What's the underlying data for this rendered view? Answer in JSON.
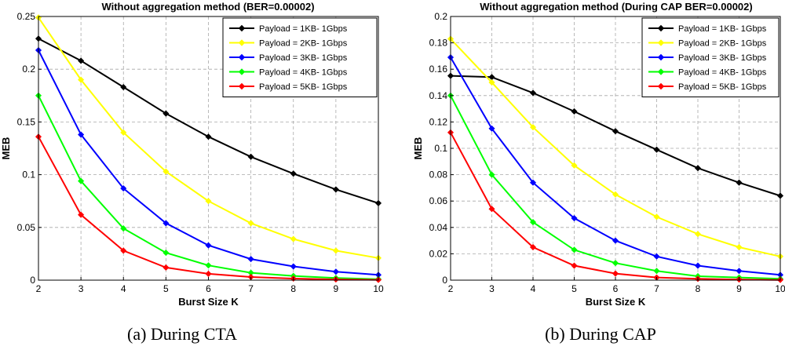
{
  "chart_data": [
    {
      "type": "line",
      "title": "Without aggregation method (BER=0.00002)",
      "xlabel": "Burst Size K",
      "ylabel": "MEB",
      "caption": "(a) During CTA",
      "xlim": [
        2,
        10
      ],
      "ylim": [
        0,
        0.25
      ],
      "xticks": [
        2,
        3,
        4,
        5,
        6,
        7,
        8,
        9,
        10
      ],
      "yticks": [
        0,
        0.05,
        0.1,
        0.15,
        0.2,
        0.25
      ],
      "ytick_labels": [
        "0",
        "0.05",
        "0.1",
        "0.15",
        "0.2",
        "0.25"
      ],
      "grid": true,
      "legend_position": "top-right",
      "x": [
        2,
        3,
        4,
        5,
        6,
        7,
        8,
        9,
        10
      ],
      "series": [
        {
          "name": "Payload = 1KB- 1Gbps",
          "color": "#000000",
          "values": [
            0.229,
            0.208,
            0.183,
            0.158,
            0.136,
            0.117,
            0.101,
            0.086,
            0.073
          ]
        },
        {
          "name": "Payload = 2KB- 1Gbps",
          "color": "#ffff00",
          "values": [
            0.249,
            0.19,
            0.14,
            0.103,
            0.075,
            0.054,
            0.039,
            0.028,
            0.021
          ]
        },
        {
          "name": "Payload = 3KB- 1Gbps",
          "color": "#0000ff",
          "values": [
            0.218,
            0.138,
            0.087,
            0.054,
            0.033,
            0.02,
            0.013,
            0.008,
            0.005
          ]
        },
        {
          "name": "Payload = 4KB- 1Gbps",
          "color": "#00ff00",
          "values": [
            0.175,
            0.094,
            0.049,
            0.026,
            0.014,
            0.007,
            0.004,
            0.002,
            0.001
          ]
        },
        {
          "name": "Payload = 5KB- 1Gbps",
          "color": "#ff0000",
          "values": [
            0.136,
            0.062,
            0.028,
            0.012,
            0.006,
            0.003,
            0.0015,
            0.0007,
            0.0003
          ]
        }
      ]
    },
    {
      "type": "line",
      "title": "Without aggregation method (During CAP BER=0.00002)",
      "xlabel": "Burst Size K",
      "ylabel": "MEB",
      "caption": "(b) During CAP",
      "xlim": [
        2,
        10
      ],
      "ylim": [
        0,
        0.2
      ],
      "xticks": [
        2,
        3,
        4,
        5,
        6,
        7,
        8,
        9,
        10
      ],
      "yticks": [
        0,
        0.02,
        0.04,
        0.06,
        0.08,
        0.1,
        0.12,
        0.14,
        0.16,
        0.18,
        0.2
      ],
      "ytick_labels": [
        "0",
        "0.02",
        "0.04",
        "0.06",
        "0.08",
        "0.1",
        "0.12",
        "0.14",
        "0.16",
        "0.18",
        "0.2"
      ],
      "grid": true,
      "legend_position": "top-right",
      "x": [
        2,
        3,
        4,
        5,
        6,
        7,
        8,
        9,
        10
      ],
      "series": [
        {
          "name": "Payload = 1KB- 1Gbps",
          "color": "#000000",
          "values": [
            0.155,
            0.154,
            0.142,
            0.128,
            0.113,
            0.099,
            0.085,
            0.074,
            0.064
          ]
        },
        {
          "name": "Payload = 2KB- 1Gbps",
          "color": "#ffff00",
          "values": [
            0.183,
            0.15,
            0.116,
            0.087,
            0.065,
            0.048,
            0.035,
            0.025,
            0.018
          ]
        },
        {
          "name": "Payload = 3KB- 1Gbps",
          "color": "#0000ff",
          "values": [
            0.169,
            0.115,
            0.074,
            0.047,
            0.03,
            0.018,
            0.011,
            0.007,
            0.004
          ]
        },
        {
          "name": "Payload = 4KB- 1Gbps",
          "color": "#00ff00",
          "values": [
            0.14,
            0.08,
            0.044,
            0.023,
            0.013,
            0.007,
            0.003,
            0.002,
            0.001
          ]
        },
        {
          "name": "Payload = 5KB- 1Gbps",
          "color": "#ff0000",
          "values": [
            0.112,
            0.054,
            0.025,
            0.011,
            0.005,
            0.002,
            0.001,
            0.0005,
            0.0002
          ]
        }
      ]
    }
  ]
}
